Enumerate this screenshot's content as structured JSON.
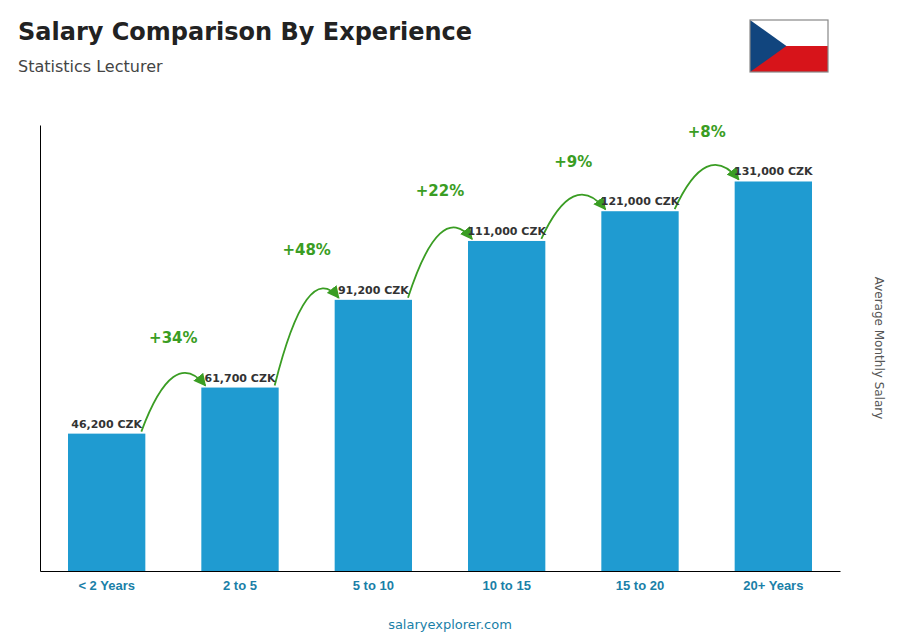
{
  "chart_data": {
    "type": "bar",
    "title": "Salary Comparison By Experience",
    "subtitle": "Statistics Lecturer",
    "categories": [
      "< 2 Years",
      "2 to 5",
      "5 to 10",
      "10 to 15",
      "15 to 20",
      "20+ Years"
    ],
    "values": [
      46200,
      61700,
      91200,
      111000,
      121000,
      131000
    ],
    "value_labels": [
      "46,200 CZK",
      "61,700 CZK",
      "91,200 CZK",
      "111,000 CZK",
      "121,000 CZK",
      "131,000 CZK"
    ],
    "data_labels": true,
    "annotations": [
      "+34%",
      "+48%",
      "+22%",
      "+9%",
      "+8%"
    ],
    "ylabel": "Average Monthly Salary",
    "source": "salaryexplorer.com",
    "ylim": [
      0,
      150000
    ],
    "tick_labels": "x",
    "grid": false,
    "color": "#1f9bd1"
  }
}
